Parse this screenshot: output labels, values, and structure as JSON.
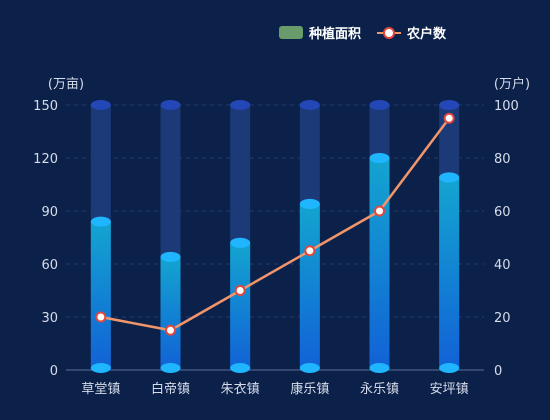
{
  "chart_data": {
    "type": "bar",
    "categories": [
      "草堂镇",
      "白帝镇",
      "朱衣镇",
      "康乐镇",
      "永乐镇",
      "安坪镇"
    ],
    "series": [
      {
        "name": "种植面积",
        "type": "bar",
        "axis": "left",
        "values": [
          84,
          64,
          72,
          94,
          120,
          109
        ]
      },
      {
        "name": "农户数",
        "type": "line",
        "axis": "right",
        "values": [
          20,
          15,
          30,
          45,
          60,
          95
        ]
      }
    ],
    "left_axis": {
      "unit": "(万亩)",
      "range": [
        0,
        150
      ],
      "ticks": [
        "0",
        "30",
        "60",
        "90",
        "120",
        "150"
      ]
    },
    "right_axis": {
      "unit": "(万户)",
      "range": [
        0,
        100
      ],
      "ticks": [
        "0",
        "20",
        "40",
        "60",
        "80",
        "100"
      ]
    },
    "bar_background_max": 150,
    "legend": {
      "position": "top-right"
    },
    "grid": {
      "horizontal": true,
      "style": "dashed"
    },
    "colors": {
      "background": "#0b2149",
      "bar_track": "#1c3a78",
      "bar_top": "#13a5d0",
      "bar_bottom": "#1261d6",
      "cap": "#1fb6ff",
      "track_cap": "#2447b8",
      "line": "#f2956a",
      "point_fill": "#ffffff",
      "point_stroke": "#e0483d",
      "legend_bar": "#6a9b6a"
    }
  }
}
